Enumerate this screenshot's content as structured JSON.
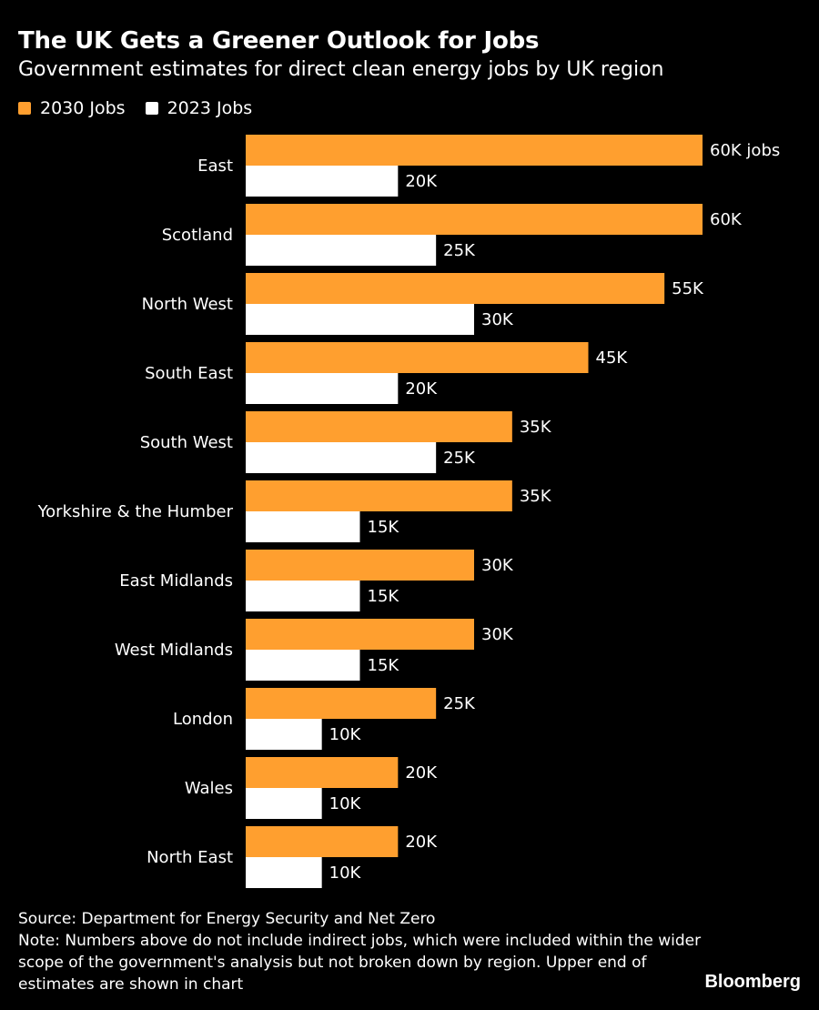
{
  "title": "The UK Gets a Greener Outlook for Jobs",
  "subtitle": "Government estimates for direct clean energy jobs by UK region",
  "colors": {
    "background": "#000000",
    "series_2030": "#ff9f2f",
    "series_2023": "#ffffff",
    "text": "#ffffff"
  },
  "chart_data": {
    "type": "bar",
    "orientation": "horizontal",
    "title": "The UK Gets a Greener Outlook for Jobs",
    "subtitle": "Government estimates for direct clean energy jobs by UK region",
    "xlabel": "",
    "ylabel": "",
    "xlim": [
      0,
      60000
    ],
    "grid": false,
    "legend_position": "top-left",
    "categories": [
      "East",
      "Scotland",
      "North West",
      "South East",
      "South West",
      "Yorkshire & the Humber",
      "East Midlands",
      "West Midlands",
      "London",
      "Wales",
      "North East"
    ],
    "series": [
      {
        "name": "2030 Jobs",
        "color": "#ff9f2f",
        "values": [
          60000,
          60000,
          55000,
          45000,
          35000,
          35000,
          30000,
          30000,
          25000,
          20000,
          20000
        ],
        "labels": [
          "60K jobs",
          "60K",
          "55K",
          "45K",
          "35K",
          "35K",
          "30K",
          "30K",
          "25K",
          "20K",
          "20K"
        ]
      },
      {
        "name": "2023 Jobs",
        "color": "#ffffff",
        "values": [
          20000,
          25000,
          30000,
          20000,
          25000,
          15000,
          15000,
          15000,
          10000,
          10000,
          10000
        ],
        "labels": [
          "20K",
          "25K",
          "30K",
          "20K",
          "25K",
          "15K",
          "15K",
          "15K",
          "10K",
          "10K",
          "10K"
        ]
      }
    ]
  },
  "footer": {
    "source": "Source: Department for Energy Security and Net Zero",
    "note": "Note: Numbers above do not include indirect jobs, which were included within the wider scope of the government's analysis but not broken down by region. Upper end of estimates are shown in chart"
  },
  "brand": "Bloomberg"
}
